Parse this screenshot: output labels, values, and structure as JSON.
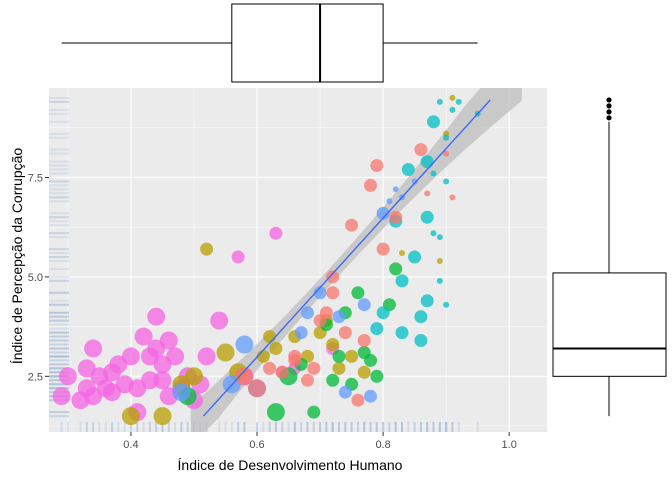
{
  "chart_data": [
    {
      "type": "scatter",
      "xlabel": "Índice de Desenvolvimento Humano",
      "ylabel": "Índice de Percepção da Corrupção",
      "xlim": [
        0.27,
        1.06
      ],
      "ylim": [
        1.1,
        9.75
      ],
      "xticks": [
        0.4,
        0.6,
        0.8,
        1.0
      ],
      "xtick_labels": [
        "0.4",
        "0.6",
        "0.8",
        "1.0"
      ],
      "yticks": [
        2.5,
        5.0,
        7.5
      ],
      "ytick_labels": [
        "2.5",
        "5.0",
        "7.5"
      ],
      "grid": true,
      "legend": "none",
      "colors": {
        "panel": "#ebebeb",
        "grid": "#ffffff",
        "regression": "#3366ff",
        "confidence_band": "#bdbdbd",
        "rug": "#a6bddb"
      },
      "regression_line": {
        "x": [
          0.515,
          0.97
        ],
        "y": [
          1.5,
          9.45
        ]
      },
      "series": [
        {
          "color": "#f564e3",
          "points": [
            {
              "x": 0.29,
              "y": 2.0,
              "s": 3
            },
            {
              "x": 0.3,
              "y": 2.5,
              "s": 3
            },
            {
              "x": 0.32,
              "y": 1.9,
              "s": 3
            },
            {
              "x": 0.33,
              "y": 2.7,
              "s": 3
            },
            {
              "x": 0.33,
              "y": 2.2,
              "s": 3
            },
            {
              "x": 0.34,
              "y": 3.2,
              "s": 3
            },
            {
              "x": 0.34,
              "y": 2.0,
              "s": 3
            },
            {
              "x": 0.35,
              "y": 2.5,
              "s": 3
            },
            {
              "x": 0.36,
              "y": 2.2,
              "s": 3
            },
            {
              "x": 0.37,
              "y": 2.6,
              "s": 3
            },
            {
              "x": 0.37,
              "y": 2.1,
              "s": 3
            },
            {
              "x": 0.38,
              "y": 2.8,
              "s": 3
            },
            {
              "x": 0.39,
              "y": 2.3,
              "s": 3
            },
            {
              "x": 0.4,
              "y": 3.0,
              "s": 3
            },
            {
              "x": 0.41,
              "y": 2.2,
              "s": 3
            },
            {
              "x": 0.41,
              "y": 1.6,
              "s": 3
            },
            {
              "x": 0.42,
              "y": 3.5,
              "s": 3
            },
            {
              "x": 0.43,
              "y": 3.0,
              "s": 3
            },
            {
              "x": 0.43,
              "y": 2.4,
              "s": 3
            },
            {
              "x": 0.44,
              "y": 4.0,
              "s": 3
            },
            {
              "x": 0.44,
              "y": 3.2,
              "s": 3
            },
            {
              "x": 0.45,
              "y": 2.8,
              "s": 3
            },
            {
              "x": 0.45,
              "y": 2.4,
              "s": 3
            },
            {
              "x": 0.46,
              "y": 3.4,
              "s": 3
            },
            {
              "x": 0.46,
              "y": 2.0,
              "s": 3
            },
            {
              "x": 0.47,
              "y": 3.0,
              "s": 3
            },
            {
              "x": 0.48,
              "y": 2.2,
              "s": 3
            },
            {
              "x": 0.49,
              "y": 2.5,
              "s": 3
            },
            {
              "x": 0.5,
              "y": 1.9,
              "s": 3
            },
            {
              "x": 0.51,
              "y": 2.3,
              "s": 3
            },
            {
              "x": 0.52,
              "y": 3.0,
              "s": 3
            },
            {
              "x": 0.54,
              "y": 3.9,
              "s": 3
            },
            {
              "x": 0.57,
              "y": 5.5,
              "s": 2
            },
            {
              "x": 0.58,
              "y": 2.5,
              "s": 3
            },
            {
              "x": 0.63,
              "y": 6.1,
              "s": 2
            },
            {
              "x": 0.64,
              "y": 2.6,
              "s": 2
            },
            {
              "x": 0.66,
              "y": 2.7,
              "s": 2
            },
            {
              "x": 0.72,
              "y": 3.2,
              "s": 2
            }
          ]
        },
        {
          "color": "#b79f00",
          "points": [
            {
              "x": 0.4,
              "y": 1.5,
              "s": 3
            },
            {
              "x": 0.45,
              "y": 1.5,
              "s": 3
            },
            {
              "x": 0.48,
              "y": 2.3,
              "s": 3
            },
            {
              "x": 0.5,
              "y": 2.5,
              "s": 3
            },
            {
              "x": 0.52,
              "y": 5.7,
              "s": 2
            },
            {
              "x": 0.55,
              "y": 3.1,
              "s": 3
            },
            {
              "x": 0.57,
              "y": 2.6,
              "s": 3
            },
            {
              "x": 0.61,
              "y": 3.0,
              "s": 2
            },
            {
              "x": 0.62,
              "y": 3.5,
              "s": 2
            },
            {
              "x": 0.63,
              "y": 3.2,
              "s": 2
            },
            {
              "x": 0.66,
              "y": 3.5,
              "s": 2
            },
            {
              "x": 0.68,
              "y": 3.0,
              "s": 2
            },
            {
              "x": 0.7,
              "y": 3.6,
              "s": 2
            },
            {
              "x": 0.71,
              "y": 3.9,
              "s": 2
            },
            {
              "x": 0.72,
              "y": 3.3,
              "s": 2
            },
            {
              "x": 0.73,
              "y": 2.7,
              "s": 2
            },
            {
              "x": 0.75,
              "y": 3.0,
              "s": 2
            },
            {
              "x": 0.77,
              "y": 2.6,
              "s": 2
            },
            {
              "x": 0.83,
              "y": 5.6,
              "s": 1
            },
            {
              "x": 0.89,
              "y": 5.4,
              "s": 1
            },
            {
              "x": 0.91,
              "y": 9.5,
              "s": 1
            },
            {
              "x": 0.9,
              "y": 8.6,
              "s": 1
            }
          ]
        },
        {
          "color": "#00ba38",
          "points": [
            {
              "x": 0.49,
              "y": 2.0,
              "s": 3
            },
            {
              "x": 0.63,
              "y": 1.6,
              "s": 3
            },
            {
              "x": 0.65,
              "y": 2.5,
              "s": 3
            },
            {
              "x": 0.67,
              "y": 2.8,
              "s": 2
            },
            {
              "x": 0.69,
              "y": 1.6,
              "s": 2
            },
            {
              "x": 0.71,
              "y": 3.8,
              "s": 2
            },
            {
              "x": 0.72,
              "y": 2.4,
              "s": 2
            },
            {
              "x": 0.73,
              "y": 3.0,
              "s": 2
            },
            {
              "x": 0.74,
              "y": 4.1,
              "s": 2
            },
            {
              "x": 0.75,
              "y": 2.3,
              "s": 2
            },
            {
              "x": 0.76,
              "y": 4.6,
              "s": 2
            },
            {
              "x": 0.77,
              "y": 3.1,
              "s": 2
            },
            {
              "x": 0.78,
              "y": 2.9,
              "s": 2
            },
            {
              "x": 0.79,
              "y": 2.5,
              "s": 2
            },
            {
              "x": 0.81,
              "y": 4.3,
              "s": 2
            },
            {
              "x": 0.82,
              "y": 5.2,
              "s": 2
            }
          ]
        },
        {
          "color": "#00bfc4",
          "points": [
            {
              "x": 0.79,
              "y": 3.7,
              "s": 2
            },
            {
              "x": 0.8,
              "y": 4.1,
              "s": 2
            },
            {
              "x": 0.82,
              "y": 6.4,
              "s": 2
            },
            {
              "x": 0.83,
              "y": 4.9,
              "s": 2
            },
            {
              "x": 0.83,
              "y": 3.6,
              "s": 2
            },
            {
              "x": 0.84,
              "y": 7.7,
              "s": 2
            },
            {
              "x": 0.85,
              "y": 5.5,
              "s": 2
            },
            {
              "x": 0.86,
              "y": 4.0,
              "s": 2
            },
            {
              "x": 0.86,
              "y": 3.4,
              "s": 2
            },
            {
              "x": 0.87,
              "y": 7.9,
              "s": 2
            },
            {
              "x": 0.87,
              "y": 6.5,
              "s": 2
            },
            {
              "x": 0.87,
              "y": 4.4,
              "s": 2
            },
            {
              "x": 0.88,
              "y": 8.9,
              "s": 2
            },
            {
              "x": 0.88,
              "y": 7.6,
              "s": 1
            },
            {
              "x": 0.88,
              "y": 6.1,
              "s": 1
            },
            {
              "x": 0.89,
              "y": 9.4,
              "s": 1
            },
            {
              "x": 0.89,
              "y": 6.0,
              "s": 1
            },
            {
              "x": 0.89,
              "y": 4.9,
              "s": 1
            },
            {
              "x": 0.9,
              "y": 8.5,
              "s": 1
            },
            {
              "x": 0.9,
              "y": 7.4,
              "s": 1
            },
            {
              "x": 0.9,
              "y": 4.3,
              "s": 1
            },
            {
              "x": 0.91,
              "y": 9.2,
              "s": 1
            },
            {
              "x": 0.92,
              "y": 9.4,
              "s": 1
            },
            {
              "x": 0.95,
              "y": 9.1,
              "s": 1
            }
          ]
        },
        {
          "color": "#619cff",
          "points": [
            {
              "x": 0.48,
              "y": 2.1,
              "s": 3
            },
            {
              "x": 0.56,
              "y": 2.3,
              "s": 3
            },
            {
              "x": 0.58,
              "y": 3.3,
              "s": 3
            },
            {
              "x": 0.6,
              "y": 2.2,
              "s": 3
            },
            {
              "x": 0.67,
              "y": 3.6,
              "s": 2
            },
            {
              "x": 0.68,
              "y": 4.1,
              "s": 2
            },
            {
              "x": 0.7,
              "y": 4.6,
              "s": 2
            },
            {
              "x": 0.73,
              "y": 4.0,
              "s": 2
            },
            {
              "x": 0.74,
              "y": 2.1,
              "s": 2
            },
            {
              "x": 0.77,
              "y": 4.3,
              "s": 2
            },
            {
              "x": 0.78,
              "y": 2.0,
              "s": 2
            },
            {
              "x": 0.8,
              "y": 6.6,
              "s": 2
            },
            {
              "x": 0.81,
              "y": 6.9,
              "s": 1
            },
            {
              "x": 0.82,
              "y": 7.2,
              "s": 1
            },
            {
              "x": 0.83,
              "y": 7.0,
              "s": 1
            },
            {
              "x": 0.85,
              "y": 7.4,
              "s": 1
            }
          ]
        },
        {
          "color": "#f8766d",
          "points": [
            {
              "x": 0.58,
              "y": 2.5,
              "s": 3
            },
            {
              "x": 0.6,
              "y": 2.2,
              "s": 3
            },
            {
              "x": 0.62,
              "y": 2.7,
              "s": 2
            },
            {
              "x": 0.64,
              "y": 2.6,
              "s": 2
            },
            {
              "x": 0.66,
              "y": 2.9,
              "s": 2
            },
            {
              "x": 0.66,
              "y": 3.0,
              "s": 2
            },
            {
              "x": 0.68,
              "y": 2.4,
              "s": 2
            },
            {
              "x": 0.69,
              "y": 2.7,
              "s": 2
            },
            {
              "x": 0.7,
              "y": 3.9,
              "s": 2
            },
            {
              "x": 0.71,
              "y": 4.1,
              "s": 2
            },
            {
              "x": 0.72,
              "y": 4.6,
              "s": 2
            },
            {
              "x": 0.72,
              "y": 5.0,
              "s": 2
            },
            {
              "x": 0.74,
              "y": 3.6,
              "s": 2
            },
            {
              "x": 0.75,
              "y": 6.3,
              "s": 2
            },
            {
              "x": 0.76,
              "y": 1.9,
              "s": 2
            },
            {
              "x": 0.77,
              "y": 3.4,
              "s": 2
            },
            {
              "x": 0.78,
              "y": 7.3,
              "s": 2
            },
            {
              "x": 0.79,
              "y": 7.8,
              "s": 2
            },
            {
              "x": 0.8,
              "y": 5.7,
              "s": 2
            },
            {
              "x": 0.82,
              "y": 6.5,
              "s": 2
            },
            {
              "x": 0.86,
              "y": 8.2,
              "s": 2
            },
            {
              "x": 0.87,
              "y": 7.1,
              "s": 1
            },
            {
              "x": 0.9,
              "y": 8.1,
              "s": 1
            },
            {
              "x": 0.91,
              "y": 7.0,
              "s": 1
            }
          ]
        }
      ]
    },
    {
      "type": "boxplot",
      "orientation": "horizontal",
      "axis": "x",
      "stats": {
        "min": 0.29,
        "q1": 0.56,
        "median": 0.7,
        "q3": 0.8,
        "max": 0.95
      }
    },
    {
      "type": "boxplot",
      "orientation": "vertical",
      "axis": "y",
      "stats": {
        "min": 1.5,
        "q1": 2.5,
        "median": 3.2,
        "q3": 5.1,
        "max": 8.9
      },
      "outliers": [
        9.0,
        9.15,
        9.3,
        9.45
      ]
    }
  ]
}
